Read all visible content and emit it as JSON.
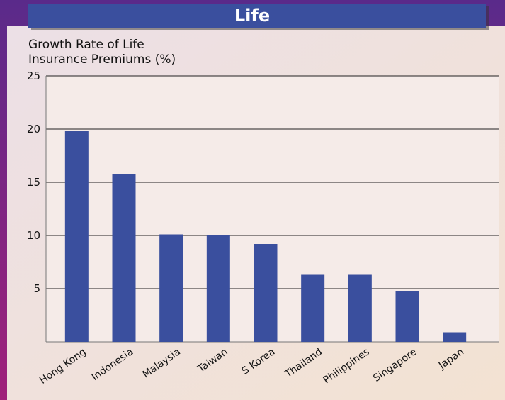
{
  "chart_data": {
    "type": "bar",
    "title": "Life",
    "ylabel": [
      "Growth Rate of Life",
      "Insurance Premiums (%)"
    ],
    "categories": [
      "Hong Kong",
      "Indonesia",
      "Malaysia",
      "Taiwan",
      "S Korea",
      "Thailand",
      "Philippines",
      "Singapore",
      "Japan"
    ],
    "values": [
      19.8,
      15.8,
      10.1,
      10.0,
      9.2,
      6.3,
      6.3,
      4.8,
      0.9
    ],
    "color": "#3a4f9e",
    "ylim": [
      0,
      25
    ],
    "yticks": [
      5,
      10,
      15,
      20,
      25
    ],
    "grid": true
  }
}
